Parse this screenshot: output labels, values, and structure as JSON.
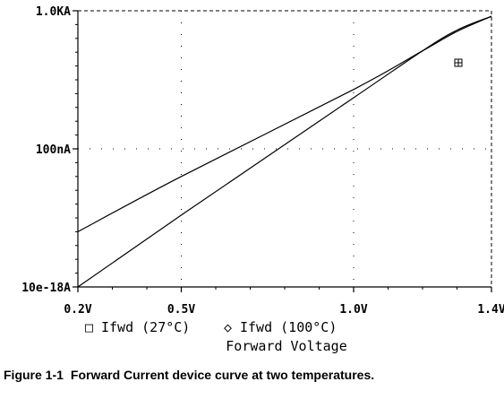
{
  "chart_data": {
    "type": "line",
    "xlabel": "Forward Voltage",
    "x_ticks": [
      "0.2V",
      "0.5V",
      "1.0V",
      "1.4V"
    ],
    "x_tick_values": [
      0.2,
      0.5,
      1.0,
      1.4
    ],
    "xlim": [
      0.2,
      1.4
    ],
    "y_ticks": [
      "1.0KA",
      "100nA",
      "10e-18A"
    ],
    "y_tick_values_log10": [
      3,
      -7,
      -17
    ],
    "ylim_log10": [
      -17,
      3
    ],
    "y_scale": "log",
    "grid": true,
    "series": [
      {
        "name": "Ifwd (27°C)",
        "marker": "□",
        "x": [
          0.2,
          0.5,
          1.0,
          1.2,
          1.3,
          1.4
        ],
        "y_log10": [
          -17,
          -11.8,
          -3.3,
          0.1,
          1.6,
          2.6
        ]
      },
      {
        "name": "Ifwd (100°C)",
        "marker": "◇",
        "x": [
          0.2,
          0.5,
          1.0,
          1.2,
          1.3,
          1.4
        ],
        "y_log10": [
          -13,
          -9.0,
          -2.7,
          0.1,
          1.5,
          2.6
        ]
      }
    ],
    "legend_position": "bottom"
  },
  "colors": {
    "plot": "#000000",
    "grid": "#000000",
    "background": "#ffffff"
  },
  "caption": {
    "number": "Figure 1-1",
    "text": "Forward Current device curve at two temperatures."
  }
}
